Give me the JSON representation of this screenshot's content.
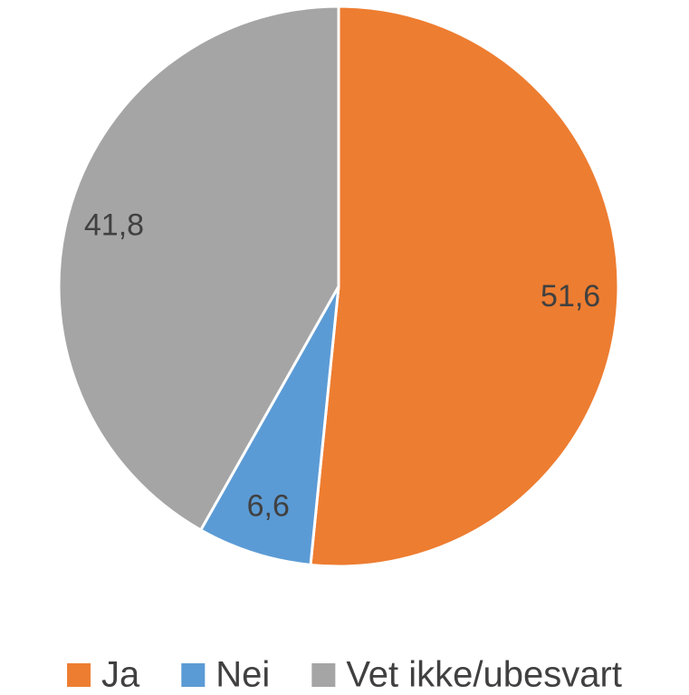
{
  "chart_data": {
    "type": "pie",
    "categories": [
      "Ja",
      "Nei",
      "Vet ikke/ubesvart"
    ],
    "values": [
      51.6,
      6.6,
      41.8
    ],
    "value_labels": [
      "51,6",
      "6,6",
      "41,8"
    ],
    "colors": [
      "#ED7D31",
      "#5B9BD5",
      "#A5A5A5"
    ],
    "legend": "bottom"
  }
}
